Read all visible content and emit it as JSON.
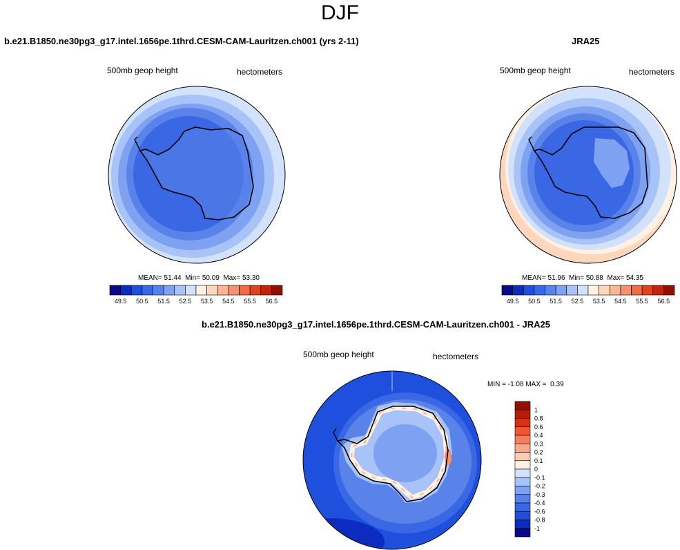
{
  "figure_title": "DJF",
  "chart_data": [
    {
      "type": "contour-map",
      "projection": "south polar stereographic",
      "title": "b.e21.B1850.ne30pg3_g17.intel.1656pe.1thrd.CESM-CAM-Lauritzen.ch001 (yrs 2-11)",
      "variable": "500mb geop height",
      "units": "hectometers",
      "stats": {
        "mean_label": "MEAN=",
        "mean": "51.44",
        "min_label": "Min=",
        "min": "50.09",
        "max_label": "Max=",
        "max": "53.30"
      },
      "colorbar": {
        "orientation": "horizontal",
        "labels": [
          "49.5",
          "50.5",
          "51.5",
          "52.5",
          "53.5",
          "54.5",
          "55.5",
          "56.5"
        ],
        "colors": [
          "#08088a",
          "#0b2cbf",
          "#1f4fdd",
          "#3a67e3",
          "#5a83ea",
          "#7fa1f1",
          "#a8c3f7",
          "#d3e2fb",
          "#fff2e4",
          "#fdd7bd",
          "#fbb595",
          "#f8906c",
          "#f16b45",
          "#e2431f",
          "#c2230c",
          "#901004"
        ]
      }
    },
    {
      "type": "contour-map",
      "projection": "south polar stereographic",
      "title": "JRA25",
      "variable": "500mb geop height",
      "units": "hectometers",
      "stats": {
        "mean_label": "MEAN=",
        "mean": "51.96",
        "min_label": "Min=",
        "min": "50.88",
        "max_label": "Max=",
        "max": "54.35"
      },
      "colorbar": {
        "orientation": "horizontal",
        "labels": [
          "49.5",
          "50.5",
          "51.5",
          "52.5",
          "53.5",
          "54.5",
          "55.5",
          "56.5"
        ],
        "colors": [
          "#08088a",
          "#0b2cbf",
          "#1f4fdd",
          "#3a67e3",
          "#5a83ea",
          "#7fa1f1",
          "#a8c3f7",
          "#d3e2fb",
          "#fff2e4",
          "#fdd7bd",
          "#fbb595",
          "#f8906c",
          "#f16b45",
          "#e2431f",
          "#c2230c",
          "#901004"
        ]
      }
    },
    {
      "type": "contour-map",
      "projection": "south polar stereographic",
      "title": "b.e21.B1850.ne30pg3_g17.intel.1656pe.1thrd.CESM-CAM-Lauritzen.ch001 - JRA25",
      "variable": "500mb geop height",
      "units": "hectometers",
      "stats": {
        "min_label": "MIN =",
        "min": "-1.08",
        "max_label": "MAX =",
        "max": "0.39"
      },
      "colorbar": {
        "orientation": "vertical",
        "labels": [
          "1",
          "0.8",
          "0.6",
          "0.4",
          "0.3",
          "0.2",
          "0.1",
          "0",
          "-0.1",
          "-0.2",
          "-0.3",
          "-0.4",
          "-0.6",
          "-0.8",
          "-1"
        ],
        "colors": [
          "#901004",
          "#b41d09",
          "#d73212",
          "#f0562f",
          "#f77d5a",
          "#fba685",
          "#fdcdb1",
          "#fff2e4",
          "#d3e2fb",
          "#a8c3f7",
          "#7fa1f1",
          "#5a83ea",
          "#3a67e3",
          "#1f4fdd",
          "#0b2cbf",
          "#08088a"
        ]
      }
    }
  ]
}
